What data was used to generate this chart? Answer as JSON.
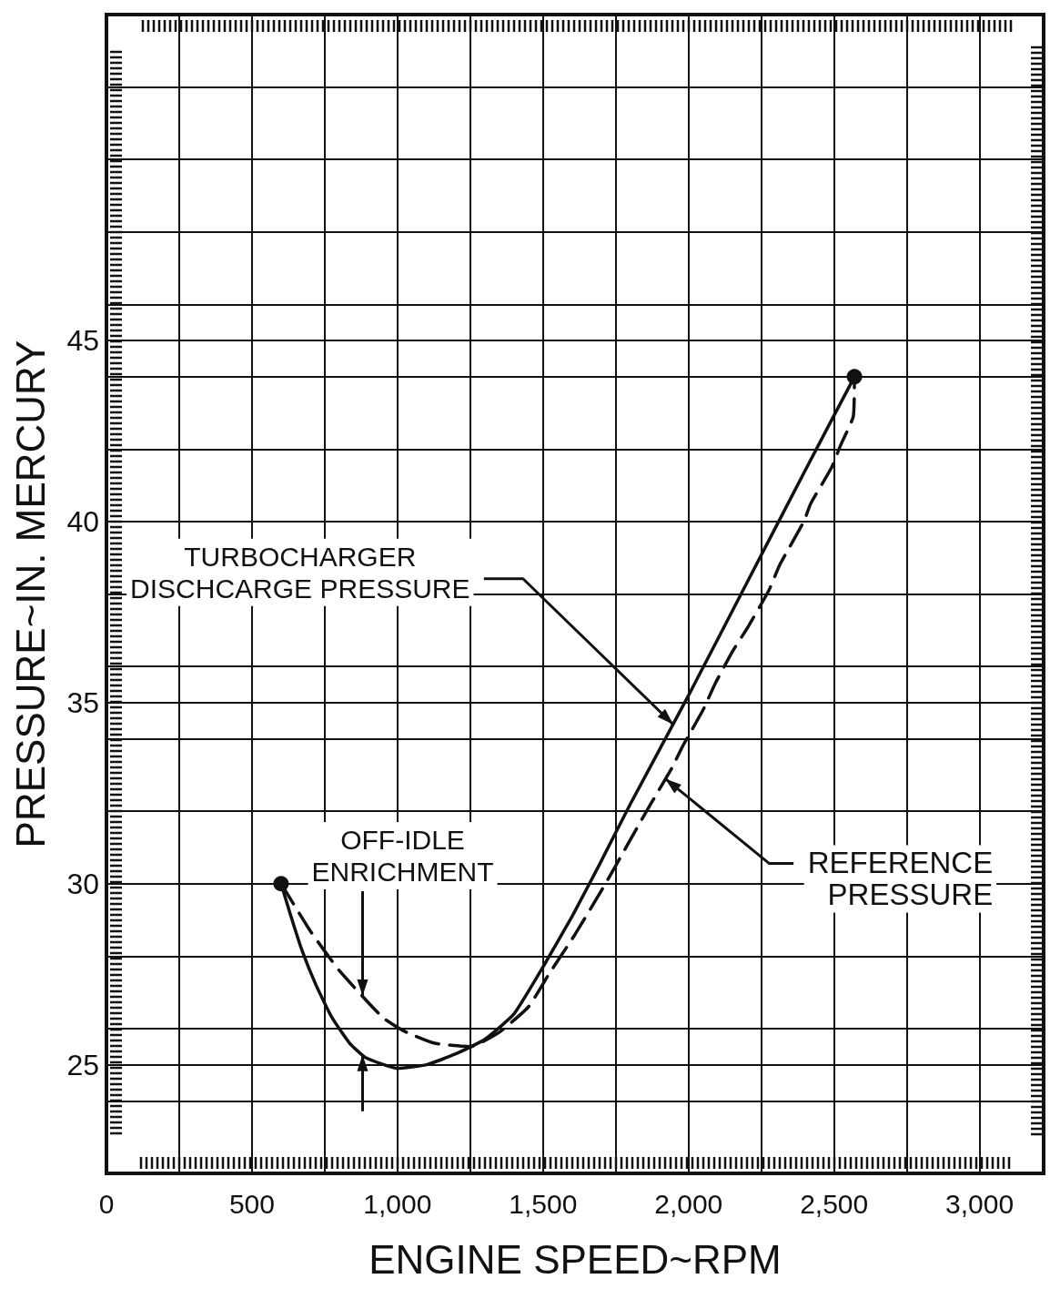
{
  "chart_data": {
    "type": "line",
    "xlabel": "ENGINE SPEED~RPM",
    "ylabel": "PRESSURE~IN. MERCURY",
    "xlim": [
      0,
      3220
    ],
    "ylim": [
      22,
      54
    ],
    "xticks": [
      0,
      {
        "value": 250,
        "label": null
      },
      500,
      {
        "value": 750,
        "label": null
      },
      {
        "value": 1000,
        "label": "1,000"
      },
      {
        "value": 1250,
        "label": null
      },
      {
        "value": 1500,
        "label": "1,500"
      },
      {
        "value": 1750,
        "label": null
      },
      {
        "value": 2000,
        "label": "2,000"
      },
      {
        "value": 2250,
        "label": null
      },
      {
        "value": 2500,
        "label": "2,500"
      },
      {
        "value": 2750,
        "label": null
      },
      {
        "value": 3000,
        "label": "3,000"
      }
    ],
    "yticks": [
      {
        "value": 24,
        "label": null
      },
      25,
      {
        "value": 26,
        "label": null
      },
      {
        "value": 28,
        "label": null
      },
      30,
      {
        "value": 32,
        "label": null
      },
      {
        "value": 34,
        "label": null
      },
      35,
      {
        "value": 36,
        "label": null
      },
      {
        "value": 38,
        "label": null
      },
      40,
      {
        "value": 42,
        "label": null
      },
      {
        "value": 44,
        "label": null
      },
      45,
      {
        "value": 46,
        "label": null
      },
      {
        "value": 48,
        "label": null
      },
      {
        "value": 50,
        "label": null
      },
      {
        "value": 52,
        "label": null
      }
    ],
    "grid": true,
    "series": [
      {
        "color": "#111111",
        "line_style": "solid",
        "marker": "none",
        "x": [
          600,
          630,
          670,
          720,
          775,
          835,
          890,
          1000,
          1100,
          1200,
          1300,
          1400,
          1500,
          1600,
          1692,
          1800,
          2000,
          2200,
          2400,
          2570
        ],
        "values": [
          30.0,
          29.2,
          28.2,
          27.2,
          26.3,
          25.6,
          25.2,
          24.9,
          25.0,
          25.3,
          25.7,
          26.4,
          27.7,
          29.1,
          30.5,
          32.2,
          35.2,
          38.3,
          41.4,
          44.0
        ]
      },
      {
        "color": "#111111",
        "line_style": "dashed",
        "marker": "none",
        "x": [
          600,
          700,
          800,
          950,
          1030,
          1125,
          1250,
          1350,
          1450,
          1520,
          1610,
          1700,
          1750,
          1820,
          1870,
          1943,
          1980,
          2050,
          2090,
          2150,
          2205,
          2276,
          2313,
          2396,
          2420,
          2492,
          2522,
          2566,
          2570
        ],
        "values": [
          30.0,
          28.7,
          27.6,
          26.3,
          25.9,
          25.6,
          25.5,
          25.9,
          26.6,
          27.5,
          28.6,
          29.8,
          30.5,
          31.5,
          32.2,
          33.2,
          33.8,
          34.8,
          35.5,
          36.4,
          37.1,
          38.1,
          38.8,
          40.0,
          40.5,
          41.5,
          42.1,
          42.9,
          44.0
        ]
      },
      {
        "type": "scatter",
        "color": "#111111",
        "marker": "circle",
        "x": [
          600,
          2570
        ],
        "values": [
          30.0,
          44.0
        ]
      }
    ],
    "annotations": [
      {
        "text": "TURBOCHARGER\nDISCHCARGE PRESSURE",
        "x": 1947,
        "y": 34.4
      },
      {
        "text": "REFERENCE\nPRESSURE",
        "x": 1920,
        "y": 32.9
      },
      {
        "text": "OFF-IDLE\nENRICHMENT",
        "x": 880,
        "y": 26.9
      }
    ]
  }
}
